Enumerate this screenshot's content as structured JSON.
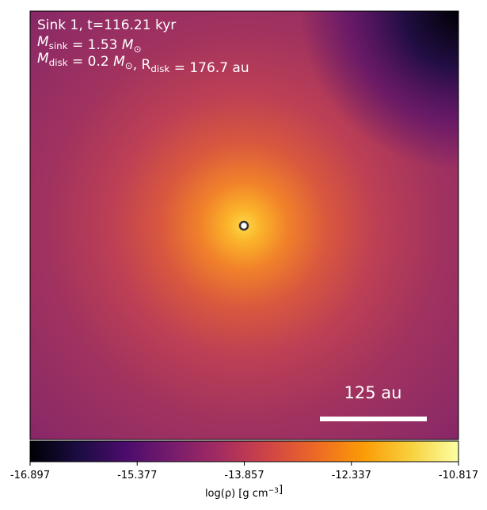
{
  "chart_data": {
    "type": "image",
    "annotations": [
      [
        {
          "text": "Sink 1, t=116.21 kyr"
        }
      ],
      [
        {
          "text": "M"
        },
        {
          "sub": "sink"
        },
        {
          "text": " = 1.53 "
        },
        {
          "text": "M"
        },
        {
          "sub": "⊙"
        }
      ],
      [
        {
          "text": "M"
        },
        {
          "sub": "disk"
        },
        {
          "text": " = 0.2 "
        },
        {
          "text": "M"
        },
        {
          "sub": "⊙"
        },
        {
          "text": ", R"
        },
        {
          "sub": "disk"
        },
        {
          "text": " = 176.7 au"
        }
      ]
    ],
    "scale_bar": "125 au",
    "colorbar": {
      "lim": [
        -16.897,
        -10.817
      ],
      "ticks": [
        -16.897,
        -15.377,
        -13.857,
        -12.337,
        -10.817
      ],
      "label": [
        {
          "text": "log(ρ) [g cm"
        },
        {
          "sup": "−3"
        },
        {
          "text": "]"
        }
      ],
      "colors": [
        "#000004",
        "#1b0c41",
        "#4a0c6b",
        "#781c6d",
        "#a52c60",
        "#cf4446",
        "#ed6925",
        "#fb9b06",
        "#f7d13d",
        "#fcffa4"
      ]
    }
  }
}
